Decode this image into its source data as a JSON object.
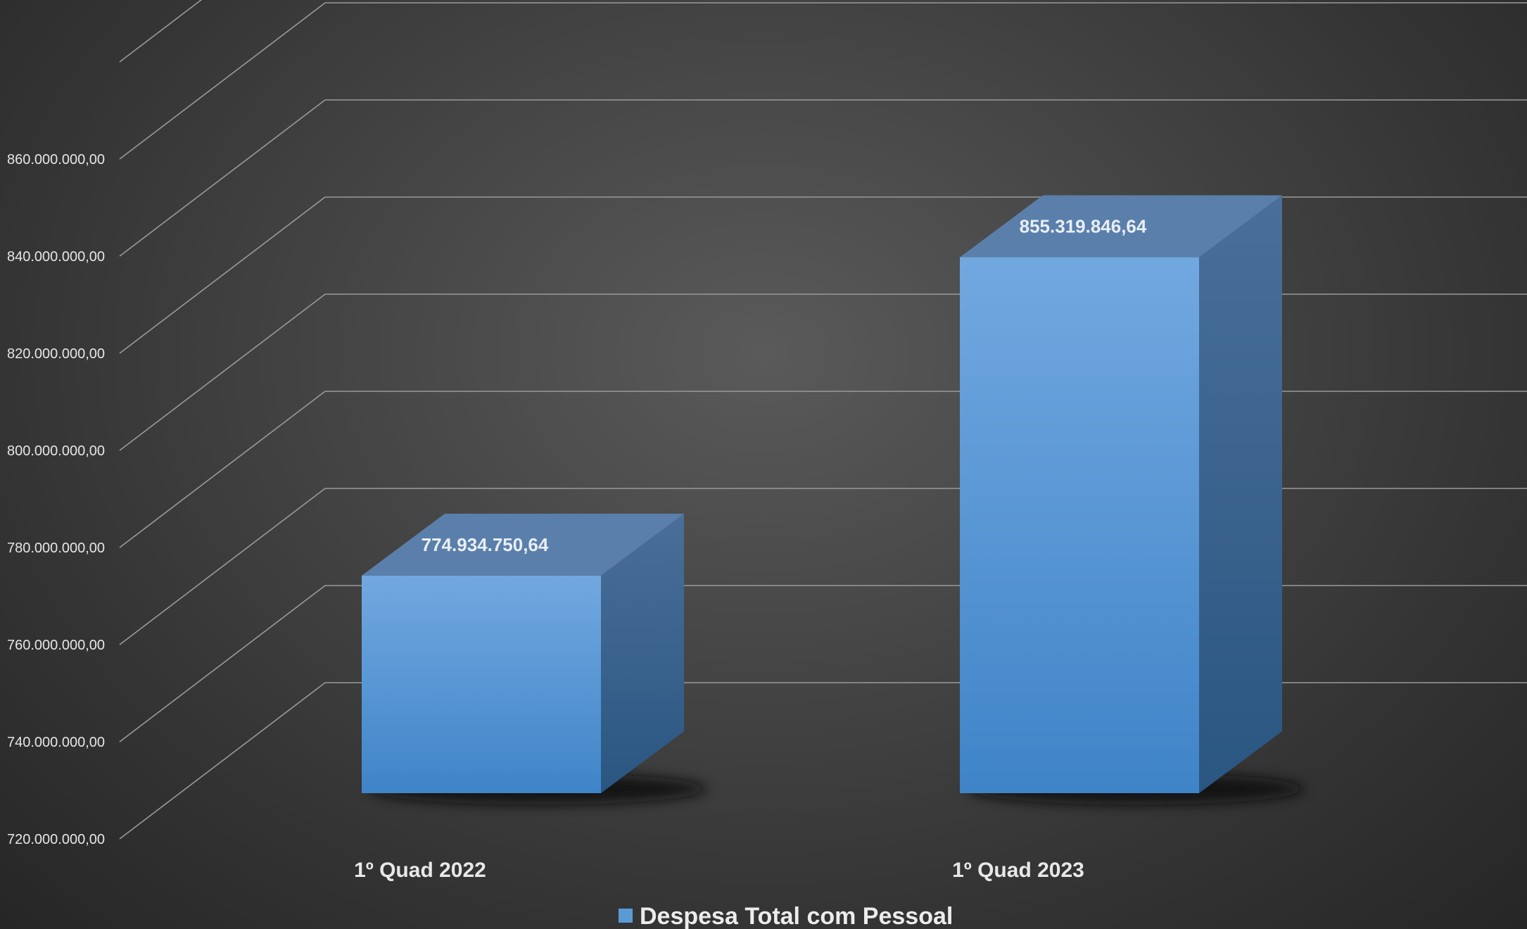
{
  "chart_data": {
    "type": "bar",
    "categories": [
      "1º Quad 2022",
      "1º Quad 2023"
    ],
    "series": [
      {
        "name": "Despesa Total com Pessoal",
        "values": [
          774934750.64,
          855319846.64
        ],
        "data_labels": [
          "774.934.750,64",
          "855.319.846,64"
        ],
        "color": "#5b9bd5"
      }
    ],
    "ylim": [
      720000000,
      880000000
    ],
    "ytick_values": [
      720000000,
      740000000,
      760000000,
      780000000,
      800000000,
      820000000,
      840000000,
      860000000,
      880000000
    ],
    "ytick_labels": [
      "720.000.000,00",
      "740.000.000,00",
      "760.000.000,00",
      "780.000.000,00",
      "800.000.000,00",
      "820.000.000,00",
      "840.000.000,00",
      "860.000.000,00",
      ""
    ],
    "grid": true,
    "legend_position": "bottom",
    "style": "3d-column",
    "background": "#474747"
  }
}
